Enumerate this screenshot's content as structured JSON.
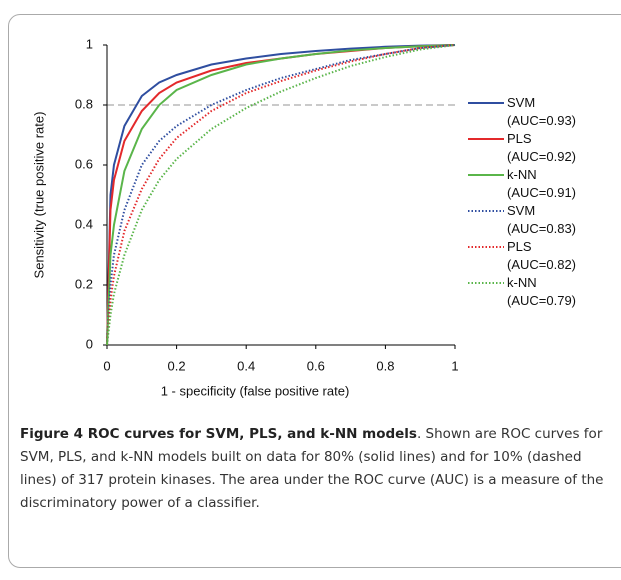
{
  "chart_data": {
    "type": "line",
    "xlabel": "1 - specificity (false positive rate)",
    "ylabel": "Sensitivity (true positive rate)",
    "x": [
      0,
      0.01,
      0.02,
      0.05,
      0.1,
      0.15,
      0.2,
      0.3,
      0.4,
      0.5,
      0.6,
      0.7,
      0.8,
      0.9,
      1
    ],
    "series": [
      {
        "name": "SVM (AUC=0.93)",
        "color": "#2f4ea0",
        "style": "solid",
        "values": [
          0,
          0.5,
          0.6,
          0.73,
          0.83,
          0.875,
          0.9,
          0.935,
          0.955,
          0.97,
          0.98,
          0.988,
          0.994,
          0.998,
          1
        ]
      },
      {
        "name": "PLS (AUC=0.92)",
        "color": "#e3292b",
        "style": "solid",
        "values": [
          0,
          0.45,
          0.55,
          0.68,
          0.78,
          0.84,
          0.875,
          0.915,
          0.94,
          0.955,
          0.97,
          0.98,
          0.99,
          0.996,
          1
        ]
      },
      {
        "name": "k-NN (AUC=0.91)",
        "color": "#5ab54a",
        "style": "solid",
        "values": [
          0,
          0.3,
          0.4,
          0.58,
          0.72,
          0.8,
          0.85,
          0.9,
          0.935,
          0.955,
          0.97,
          0.982,
          0.99,
          0.996,
          1
        ]
      },
      {
        "name": "SVM (AUC=0.83)",
        "color": "#2f4ea0",
        "style": "dotted",
        "values": [
          0,
          0.2,
          0.3,
          0.45,
          0.6,
          0.68,
          0.73,
          0.8,
          0.85,
          0.89,
          0.92,
          0.95,
          0.97,
          0.99,
          1
        ]
      },
      {
        "name": "PLS (AUC=0.82)",
        "color": "#e3292b",
        "style": "dotted",
        "values": [
          0,
          0.15,
          0.23,
          0.38,
          0.52,
          0.62,
          0.69,
          0.78,
          0.84,
          0.88,
          0.915,
          0.945,
          0.97,
          0.99,
          1
        ]
      },
      {
        "name": "k-NN (AUC=0.79)",
        "color": "#5ab54a",
        "style": "dotted",
        "values": [
          0,
          0.1,
          0.17,
          0.3,
          0.45,
          0.55,
          0.62,
          0.72,
          0.79,
          0.845,
          0.89,
          0.93,
          0.96,
          0.985,
          1
        ]
      }
    ],
    "hlines": [
      0.8
    ],
    "xlim": [
      0,
      1
    ],
    "ylim": [
      0,
      1
    ],
    "xticks": [
      0,
      0.2,
      0.4,
      0.6,
      0.8,
      1
    ],
    "yticks": [
      0,
      0.2,
      0.4,
      0.6,
      0.8,
      1
    ],
    "legend": "right"
  },
  "caption": {
    "label": "Figure 4 ROC curves for SVM, PLS, and k-NN models",
    "text": ". Shown are ROC curves for SVM, PLS, and k-NN models built on data for 80% (solid lines) and for 10% (dashed lines) of 317 protein kinases. The area under the ROC curve (AUC) is a measure of the discriminatory power of a classifier."
  }
}
